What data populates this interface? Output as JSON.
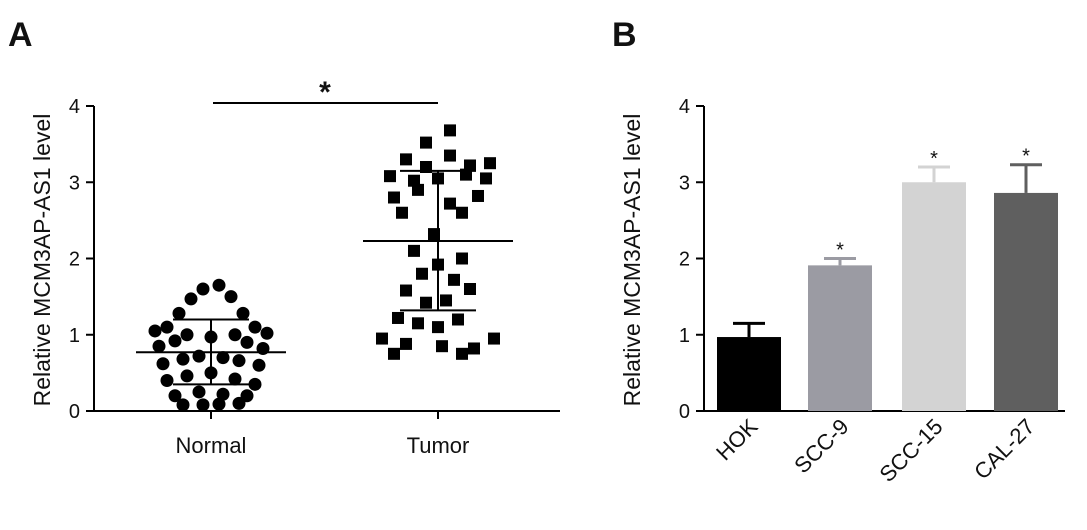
{
  "chart_data": [
    {
      "panel": "A",
      "type": "scatter",
      "ylabel": "Relative MCM3AP-AS1 level",
      "ylim": [
        0,
        4
      ],
      "yticks": [
        "0",
        "1",
        "2",
        "3",
        "4"
      ],
      "categories": [
        "Normal",
        "Tumor"
      ],
      "significance": "*",
      "series": [
        {
          "marker": "circle",
          "mean": 0.77,
          "sd_low": 0.35,
          "sd_high": 1.2,
          "points": [
            [
              -0.7,
              1.05
            ],
            [
              -0.55,
              1.1
            ],
            [
              -0.4,
              1.28
            ],
            [
              -0.25,
              1.47
            ],
            [
              -0.1,
              1.6
            ],
            [
              0.1,
              1.65
            ],
            [
              0.25,
              1.5
            ],
            [
              0.4,
              1.28
            ],
            [
              0.55,
              1.1
            ],
            [
              0.7,
              1.02
            ],
            [
              -0.65,
              0.85
            ],
            [
              -0.45,
              0.92
            ],
            [
              -0.3,
              1.0
            ],
            [
              0.0,
              0.97
            ],
            [
              0.3,
              1.0
            ],
            [
              0.45,
              0.9
            ],
            [
              0.65,
              0.82
            ],
            [
              -0.6,
              0.62
            ],
            [
              -0.35,
              0.68
            ],
            [
              -0.15,
              0.72
            ],
            [
              0.15,
              0.7
            ],
            [
              0.35,
              0.66
            ],
            [
              0.6,
              0.6
            ],
            [
              -0.55,
              0.4
            ],
            [
              -0.3,
              0.46
            ],
            [
              0.0,
              0.5
            ],
            [
              0.3,
              0.42
            ],
            [
              0.55,
              0.35
            ],
            [
              -0.45,
              0.2
            ],
            [
              -0.15,
              0.25
            ],
            [
              0.15,
              0.22
            ],
            [
              0.45,
              0.2
            ],
            [
              -0.35,
              0.08
            ],
            [
              -0.1,
              0.08
            ],
            [
              0.1,
              0.09
            ],
            [
              0.35,
              0.1
            ]
          ]
        },
        {
          "marker": "square",
          "mean": 2.23,
          "sd_low": 1.32,
          "sd_high": 3.15,
          "points": [
            [
              -0.15,
              3.52
            ],
            [
              0.15,
              3.68
            ],
            [
              -0.4,
              3.3
            ],
            [
              -0.15,
              3.2
            ],
            [
              0.15,
              3.35
            ],
            [
              0.4,
              3.22
            ],
            [
              0.65,
              3.25
            ],
            [
              -0.6,
              3.08
            ],
            [
              -0.3,
              3.02
            ],
            [
              0.0,
              3.05
            ],
            [
              0.35,
              3.1
            ],
            [
              0.6,
              3.05
            ],
            [
              -0.55,
              2.8
            ],
            [
              -0.25,
              2.9
            ],
            [
              0.15,
              2.72
            ],
            [
              0.5,
              2.82
            ],
            [
              -0.45,
              2.6
            ],
            [
              0.3,
              2.6
            ],
            [
              -0.05,
              2.32
            ],
            [
              -0.3,
              2.1
            ],
            [
              0.0,
              1.92
            ],
            [
              0.3,
              2.0
            ],
            [
              -0.2,
              1.8
            ],
            [
              0.2,
              1.72
            ],
            [
              -0.4,
              1.58
            ],
            [
              0.4,
              1.6
            ],
            [
              -0.15,
              1.42
            ],
            [
              0.1,
              1.45
            ],
            [
              -0.5,
              1.22
            ],
            [
              -0.25,
              1.15
            ],
            [
              0.0,
              1.1
            ],
            [
              0.25,
              1.2
            ],
            [
              -0.7,
              0.95
            ],
            [
              -0.4,
              0.88
            ],
            [
              0.05,
              0.85
            ],
            [
              0.45,
              0.82
            ],
            [
              -0.55,
              0.75
            ],
            [
              0.7,
              0.95
            ],
            [
              0.3,
              0.75
            ]
          ]
        }
      ]
    },
    {
      "panel": "B",
      "type": "bar",
      "ylabel": "Relative MCM3AP-AS1 level",
      "ylim": [
        0,
        4
      ],
      "yticks": [
        "0",
        "1",
        "2",
        "3",
        "4"
      ],
      "categories": [
        "HOK",
        "SCC-9",
        "SCC-15",
        "CAL-27"
      ],
      "values": [
        0.97,
        1.91,
        3.0,
        2.86
      ],
      "errors": [
        0.18,
        0.09,
        0.2,
        0.37
      ],
      "significance": [
        "",
        "*",
        "*",
        "*"
      ],
      "colors": [
        "#000000",
        "#9b9ba3",
        "#d3d3d3",
        "#5f5f5f"
      ]
    }
  ]
}
